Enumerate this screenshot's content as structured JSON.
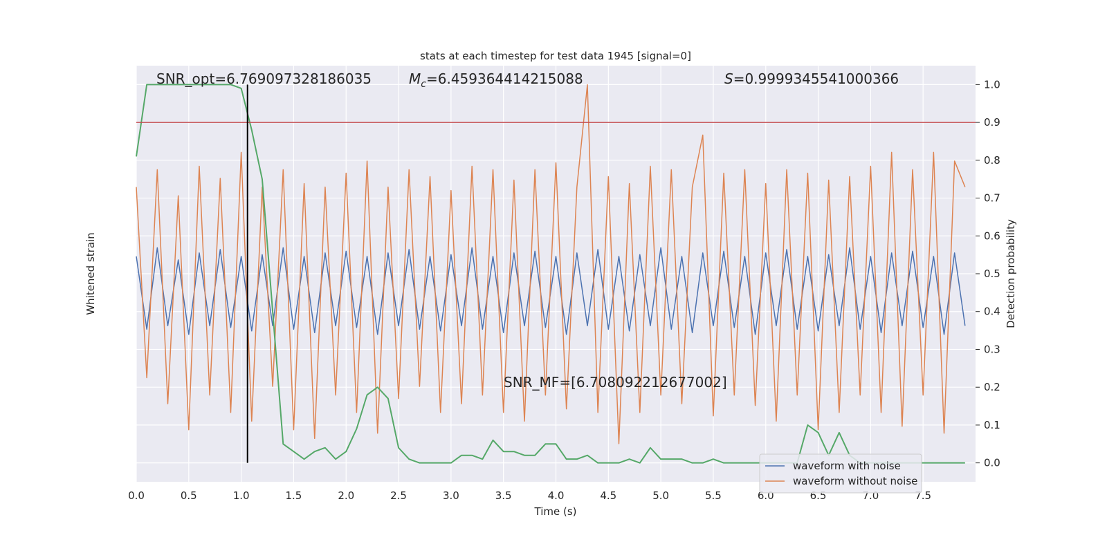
{
  "chart_data": {
    "type": "line",
    "title": "stats at each timestep for test data 1945 [signal=0]",
    "xlabel": "Time (s)",
    "ylabel": "Whitened strain",
    "y2label": "Detection probability",
    "xlim": [
      0,
      8
    ],
    "ylim": [
      -1.1,
      1.3
    ],
    "y2lim": [
      -0.05,
      1.05
    ],
    "xticks": [
      {
        "value": 0,
        "label": "0.0"
      },
      {
        "value": 0.5,
        "label": "0.5"
      },
      {
        "value": 1,
        "label": "1.0"
      },
      {
        "value": 1.5,
        "label": "1.5"
      },
      {
        "value": 2,
        "label": "2.0"
      },
      {
        "value": 2.5,
        "label": "2.5"
      },
      {
        "value": 3,
        "label": "3.0"
      },
      {
        "value": 3.5,
        "label": "3.5"
      },
      {
        "value": 4,
        "label": "4.0"
      },
      {
        "value": 4.5,
        "label": "4.5"
      },
      {
        "value": 5,
        "label": "5.0"
      },
      {
        "value": 5.5,
        "label": "5.5"
      },
      {
        "value": 6,
        "label": "6.0"
      },
      {
        "value": 6.5,
        "label": "6.5"
      },
      {
        "value": 7,
        "label": "7.0"
      },
      {
        "value": 7.5,
        "label": "7.5"
      }
    ],
    "y2ticks": [
      {
        "value": 0,
        "label": "0.0"
      },
      {
        "value": 0.1,
        "label": "0.1"
      },
      {
        "value": 0.2,
        "label": "0.2"
      },
      {
        "value": 0.3,
        "label": "0.3"
      },
      {
        "value": 0.4,
        "label": "0.4"
      },
      {
        "value": 0.5,
        "label": "0.5"
      },
      {
        "value": 0.6,
        "label": "0.6"
      },
      {
        "value": 0.7,
        "label": "0.7"
      },
      {
        "value": 0.8,
        "label": "0.8"
      },
      {
        "value": 0.9,
        "label": "0.9"
      },
      {
        "value": 1,
        "label": "1.0"
      }
    ],
    "grid": true,
    "legend": "lower right",
    "x": [
      0.0,
      0.1,
      0.2,
      0.3,
      0.4,
      0.5,
      0.6,
      0.7,
      0.8,
      0.9,
      1.0,
      1.1,
      1.2,
      1.3,
      1.4,
      1.5,
      1.6,
      1.7,
      1.8,
      1.9,
      2.0,
      2.1,
      2.2,
      2.3,
      2.4,
      2.5,
      2.6,
      2.7,
      2.8,
      2.9,
      3.0,
      3.1,
      3.2,
      3.3,
      3.4,
      3.5,
      3.6,
      3.7,
      3.8,
      3.9,
      4.0,
      4.1,
      4.2,
      4.3,
      4.4,
      4.5,
      4.6,
      4.7,
      4.8,
      4.9,
      5.0,
      5.1,
      5.2,
      5.3,
      5.4,
      5.5,
      5.6,
      5.7,
      5.8,
      5.9,
      6.0,
      6.1,
      6.2,
      6.3,
      6.4,
      6.5,
      6.6,
      6.7,
      6.8,
      6.9,
      7.0,
      7.1,
      7.2,
      7.3,
      7.4,
      7.5,
      7.6,
      7.7,
      7.8,
      7.9
    ],
    "series": [
      {
        "name": "waveform with noise",
        "color": "#4c72b0",
        "axis": "y",
        "values": [
          0.2,
          -0.22,
          0.25,
          -0.2,
          0.18,
          -0.25,
          0.22,
          -0.2,
          0.24,
          -0.21,
          0.2,
          -0.23,
          0.21,
          -0.2,
          0.25,
          -0.22,
          0.2,
          -0.24,
          0.22,
          -0.2,
          0.23,
          -0.21,
          0.2,
          -0.25,
          0.22,
          -0.2,
          0.24,
          -0.22,
          0.2,
          -0.23,
          0.21,
          -0.2,
          0.25,
          -0.22,
          0.2,
          -0.24,
          0.22,
          -0.2,
          0.23,
          -0.21,
          0.2,
          -0.25,
          0.22,
          -0.2,
          0.24,
          -0.22,
          0.2,
          -0.23,
          0.21,
          -0.2,
          0.25,
          -0.22,
          0.2,
          -0.24,
          0.22,
          -0.2,
          0.23,
          -0.21,
          0.2,
          -0.25,
          0.22,
          -0.2,
          0.24,
          -0.22,
          0.2,
          -0.23,
          0.21,
          -0.2,
          0.25,
          -0.22,
          0.2,
          -0.24,
          0.22,
          -0.2,
          0.23,
          -0.21,
          0.2,
          -0.25,
          0.22,
          -0.2
        ]
      },
      {
        "name": "waveform without noise",
        "color": "#dd8452",
        "axis": "y",
        "values": [
          0.6,
          -0.5,
          0.7,
          -0.65,
          0.55,
          -0.8,
          0.72,
          -0.6,
          0.65,
          -0.7,
          0.8,
          -0.75,
          0.6,
          -0.55,
          0.7,
          -0.8,
          0.62,
          -0.85,
          0.6,
          -0.6,
          0.68,
          -0.7,
          0.75,
          -0.82,
          0.6,
          -0.62,
          0.7,
          -0.55,
          0.66,
          -0.7,
          0.58,
          -0.65,
          0.72,
          -0.6,
          0.7,
          -0.7,
          0.64,
          -0.75,
          0.7,
          -0.6,
          0.74,
          -0.68,
          0.6,
          1.19,
          -0.7,
          0.66,
          -0.88,
          0.62,
          -0.7,
          0.72,
          -0.6,
          0.7,
          -0.65,
          0.6,
          0.9,
          -0.72,
          0.68,
          -0.6,
          0.7,
          -0.66,
          0.62,
          -0.75,
          0.7,
          -0.6,
          0.68,
          -0.8,
          0.64,
          -0.7,
          0.66,
          -0.6,
          0.72,
          -0.7,
          0.8,
          -0.78,
          0.7,
          -0.6,
          0.8,
          -0.82,
          0.75,
          0.6
        ]
      },
      {
        "color": "#55a868",
        "axis": "y2",
        "values": [
          0.81,
          1.0,
          1.0,
          1.0,
          1.0,
          1.0,
          1.0,
          1.0,
          1.0,
          1.0,
          0.99,
          0.88,
          0.75,
          0.4,
          0.05,
          0.03,
          0.01,
          0.03,
          0.04,
          0.01,
          0.03,
          0.09,
          0.18,
          0.2,
          0.17,
          0.04,
          0.01,
          0.0,
          0.0,
          0.0,
          0.0,
          0.02,
          0.02,
          0.01,
          0.06,
          0.03,
          0.03,
          0.02,
          0.02,
          0.05,
          0.05,
          0.01,
          0.01,
          0.02,
          0.0,
          0.0,
          0.0,
          0.01,
          0.0,
          0.04,
          0.01,
          0.01,
          0.01,
          0.0,
          0.0,
          0.01,
          0.0,
          0.0,
          0.0,
          0.0,
          0.0,
          0.0,
          0.0,
          0.0,
          0.1,
          0.08,
          0.02,
          0.08,
          0.02,
          0.0,
          0.0,
          0.0,
          0.0,
          0.0,
          0.0,
          0.0,
          0.0,
          0.0,
          0.0,
          0.0
        ]
      }
    ],
    "hline": {
      "value": 0.9,
      "color": "#c44e52",
      "axis": "y2"
    },
    "vline": {
      "value": 1.06,
      "color": "#000000"
    },
    "annotations": [
      {
        "text": "SNR_opt=6.769097328186035"
      },
      {
        "symbol": "M",
        "subscript": "c",
        "text": "=6.459364414215088"
      },
      {
        "symbol": "S",
        "text": "=0.9999345541000366"
      },
      {
        "text": "SNR_MF=[6.708092212677002]"
      }
    ]
  }
}
